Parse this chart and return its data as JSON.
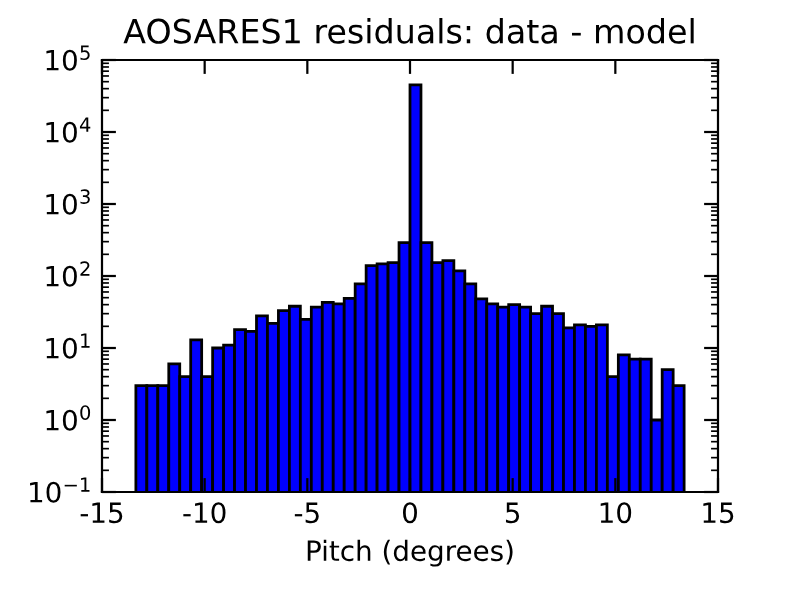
{
  "chart_data": {
    "type": "histogram",
    "title": "AOSARES1 residuals: data - model",
    "xlabel": "Pitch (degrees)",
    "bins": [
      -13.35,
      -12.816,
      -12.282,
      -11.748,
      -11.214,
      -10.68,
      -10.146,
      -9.612,
      -9.078,
      -8.544,
      -8.01,
      -7.476,
      -6.942,
      -6.408,
      -5.874,
      -5.34,
      -4.806,
      -4.272,
      -3.738,
      -3.204,
      -2.67,
      -2.136,
      -1.602,
      -1.068,
      -0.534,
      0,
      0.534,
      1.068,
      1.602,
      2.136,
      2.67,
      3.204,
      3.738,
      4.272,
      4.806,
      5.34,
      5.874,
      6.408,
      6.942,
      7.476,
      8.01,
      8.544,
      9.078,
      9.612,
      10.146,
      10.68,
      11.214,
      11.748,
      12.282,
      12.816,
      13.35
    ],
    "values": [
      3,
      3,
      3,
      6,
      4,
      13,
      4,
      10,
      11,
      18,
      17,
      28,
      22,
      33,
      38,
      25,
      37,
      43,
      41,
      49,
      78,
      139,
      147,
      153,
      290,
      45000,
      290,
      153,
      163,
      118,
      78,
      48,
      41,
      37,
      40,
      37,
      30,
      38,
      30,
      19,
      21,
      20,
      21,
      4,
      8,
      7,
      7,
      1,
      5,
      3
    ],
    "color": "#0000ff",
    "log": "y",
    "grid": false,
    "xlim": [
      -15,
      15
    ],
    "xticks": [
      -15,
      -10,
      -5,
      0,
      5,
      10,
      15
    ],
    "ylim": [
      0.1,
      100000
    ],
    "yticks": [
      {
        "value": 0.1,
        "label": "10$^{−1}$"
      },
      {
        "value": 1,
        "label": "10$^{0}$"
      },
      {
        "value": 10,
        "label": "10$^{1}$"
      },
      {
        "value": 100,
        "label": "10$^{2}$"
      },
      {
        "value": 1000,
        "label": "10$^{3}$"
      },
      {
        "value": 10000,
        "label": "10$^{4}$"
      },
      {
        "value": 100000,
        "label": "10$^{5}$"
      }
    ]
  }
}
